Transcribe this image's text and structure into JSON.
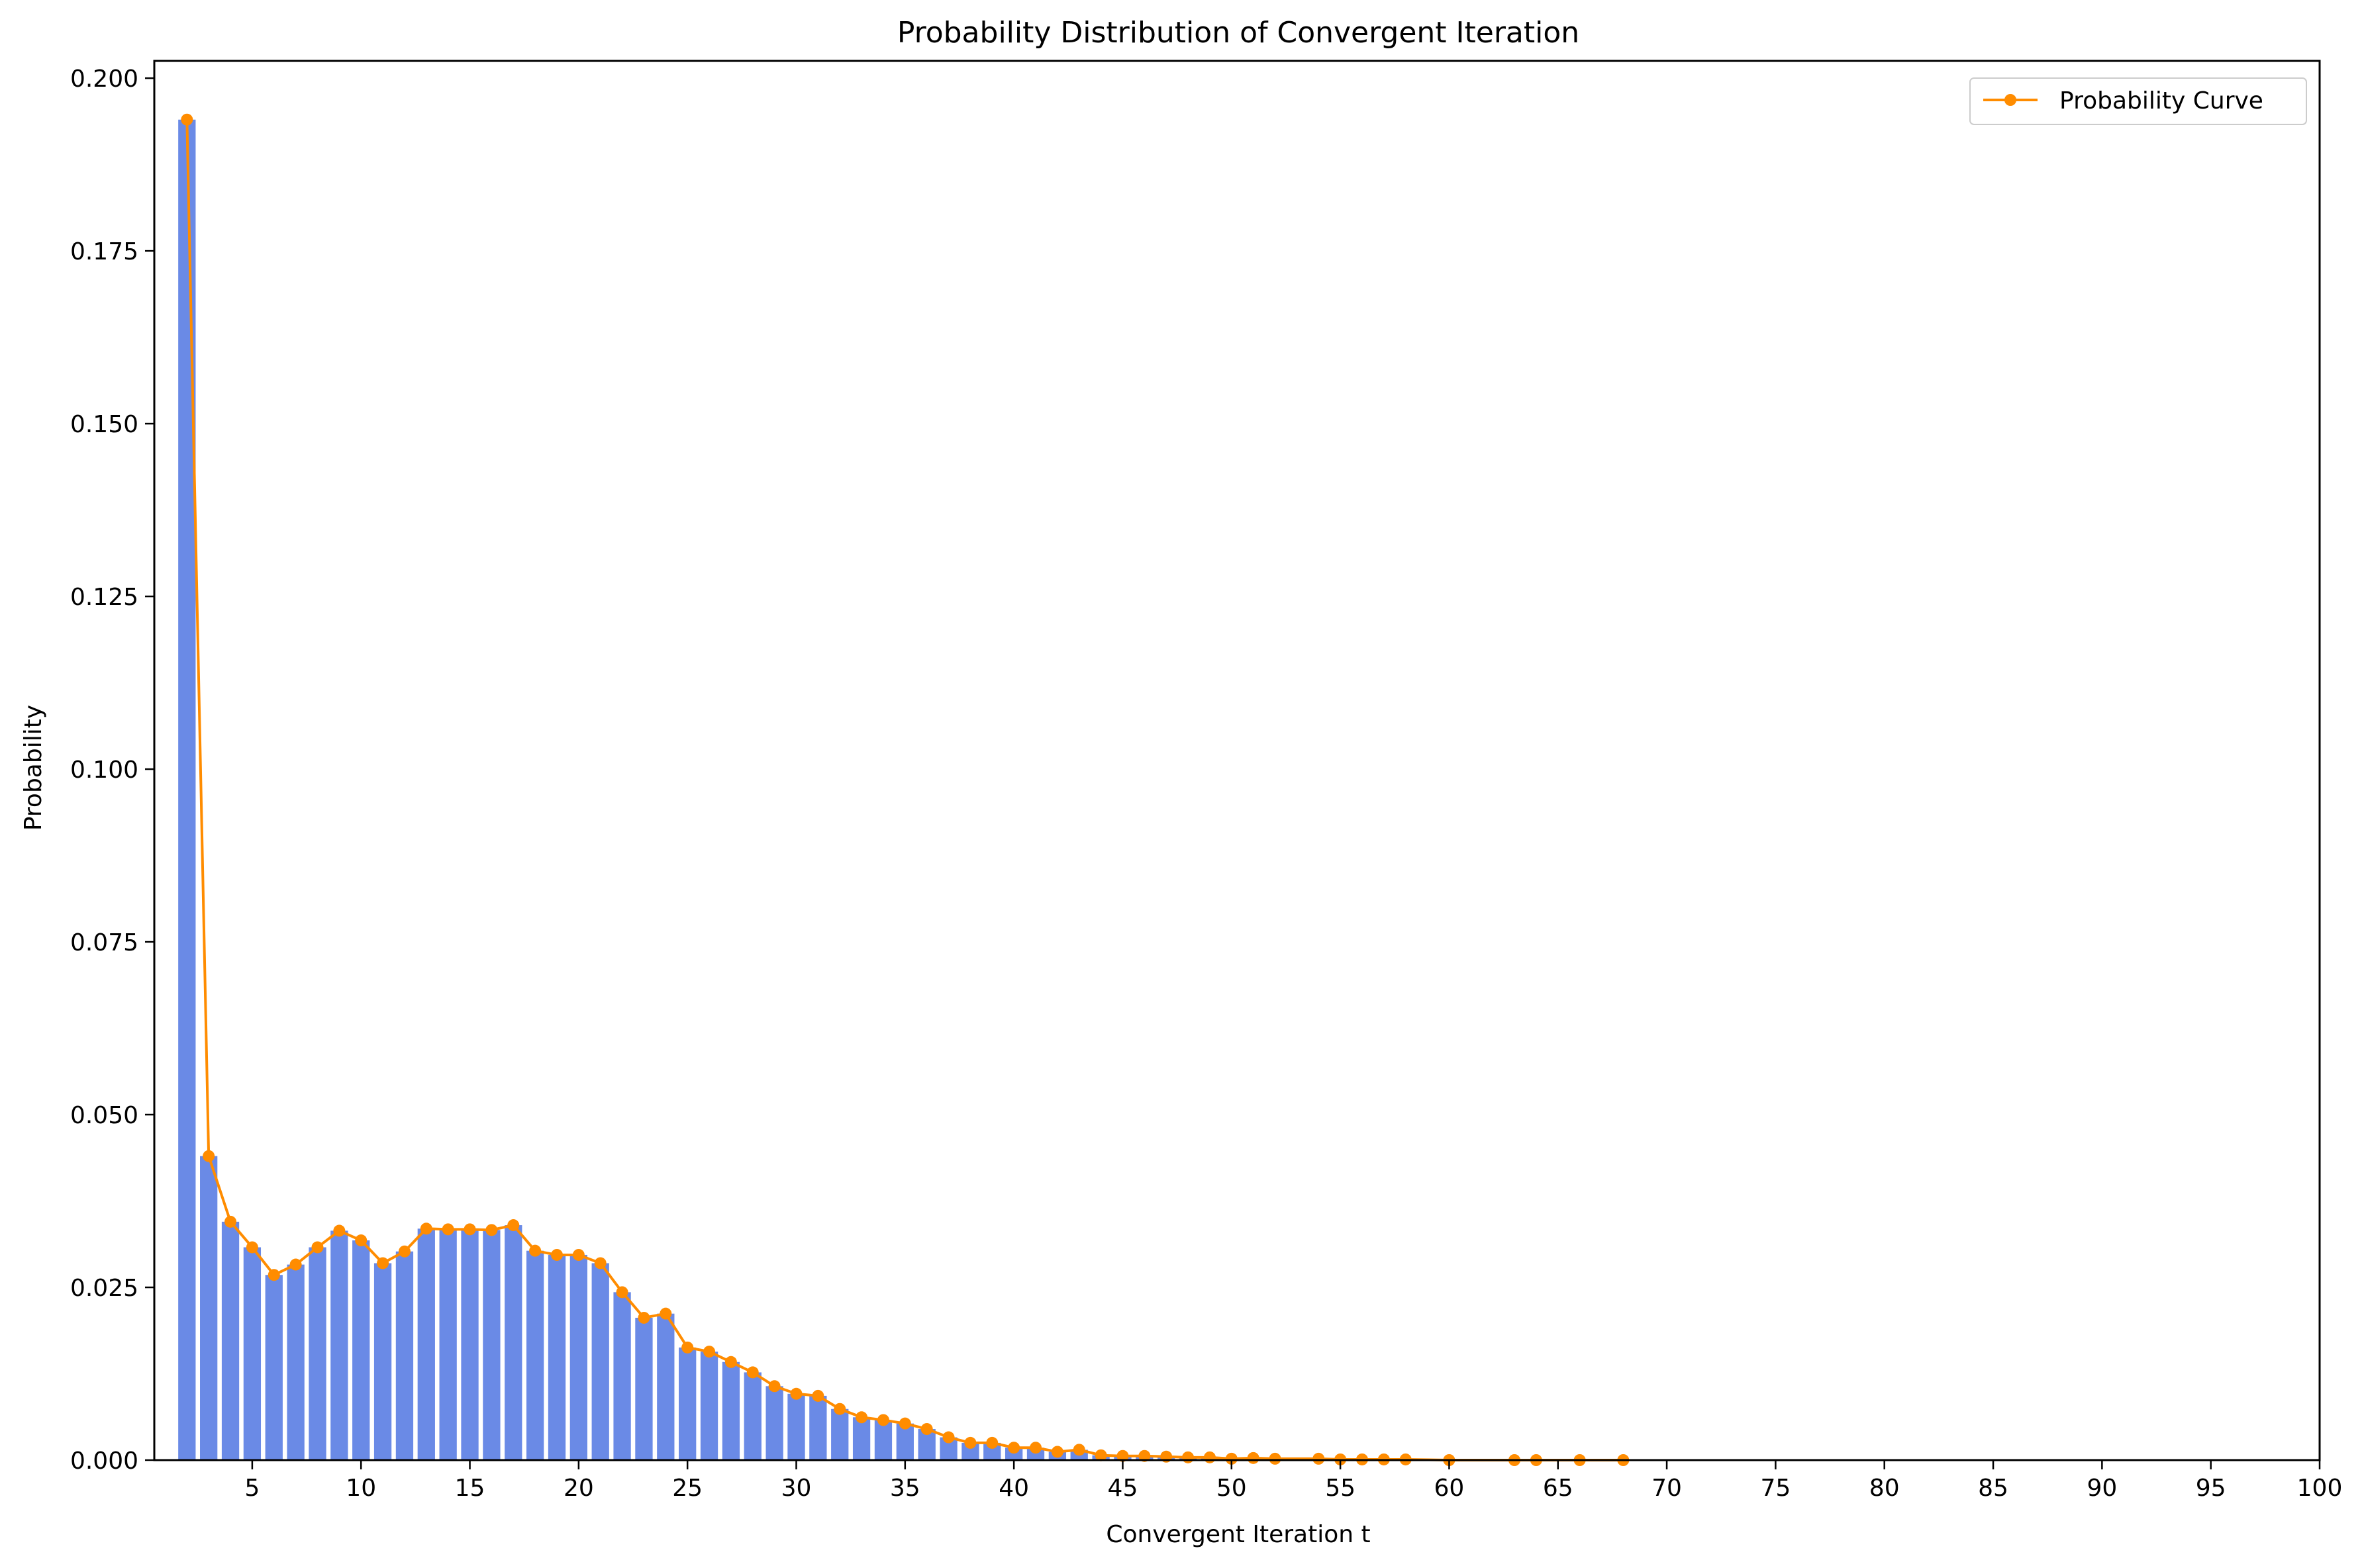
{
  "chart_data": {
    "type": "bar",
    "title": "Probability Distribution of Convergent Iteration",
    "xlabel": "Convergent Iteration t",
    "ylabel": "Probability",
    "xlim": [
      0.5,
      100
    ],
    "ylim": [
      0,
      0.2025
    ],
    "xticks": [
      5,
      10,
      15,
      20,
      25,
      30,
      35,
      40,
      45,
      50,
      55,
      60,
      65,
      70,
      75,
      80,
      85,
      90,
      95,
      100
    ],
    "xtick_labels": [
      "5",
      "10",
      "15",
      "20",
      "25",
      "30",
      "35",
      "40",
      "45",
      "50",
      "55",
      "60",
      "65",
      "70",
      "75",
      "80",
      "85",
      "90",
      "95",
      "100"
    ],
    "yticks": [
      0.0,
      0.025,
      0.05,
      0.075,
      0.1,
      0.125,
      0.15,
      0.175,
      0.2
    ],
    "ytick_labels": [
      "0.000",
      "0.025",
      "0.050",
      "0.075",
      "0.100",
      "0.125",
      "0.150",
      "0.175",
      "0.200"
    ],
    "legend": {
      "position": "top-right",
      "entries": [
        "Probability Curve"
      ]
    },
    "grid": false,
    "colors": {
      "bar": "#6a8ae6",
      "line": "#ff8c00"
    },
    "x": [
      2,
      3,
      4,
      5,
      6,
      7,
      8,
      9,
      10,
      11,
      12,
      13,
      14,
      15,
      16,
      17,
      18,
      19,
      20,
      21,
      22,
      23,
      24,
      25,
      26,
      27,
      28,
      29,
      30,
      31,
      32,
      33,
      34,
      35,
      36,
      37,
      38,
      39,
      40,
      41,
      42,
      43,
      44,
      45,
      46,
      47,
      48,
      49,
      50,
      51,
      52,
      54,
      55,
      56,
      57,
      58,
      60,
      63,
      64,
      66,
      68
    ],
    "values": [
      0.194,
      0.044,
      0.0345,
      0.0308,
      0.0268,
      0.0283,
      0.0308,
      0.0332,
      0.0318,
      0.0285,
      0.0302,
      0.0335,
      0.0334,
      0.0334,
      0.0333,
      0.034,
      0.0303,
      0.0297,
      0.0297,
      0.0285,
      0.0243,
      0.0206,
      0.0212,
      0.0163,
      0.0157,
      0.0142,
      0.0127,
      0.0107,
      0.0096,
      0.0093,
      0.0074,
      0.0062,
      0.0058,
      0.0053,
      0.0045,
      0.0033,
      0.0025,
      0.0025,
      0.0018,
      0.0018,
      0.0012,
      0.0015,
      0.0007,
      0.0006,
      0.0006,
      0.0005,
      0.0004,
      0.0004,
      0.0002,
      0.0003,
      0.0002,
      0.0002,
      0.0001,
      0.0001,
      0.0001,
      0.0001,
      0.0,
      0.0,
      0.0,
      0.0,
      0.0
    ]
  }
}
